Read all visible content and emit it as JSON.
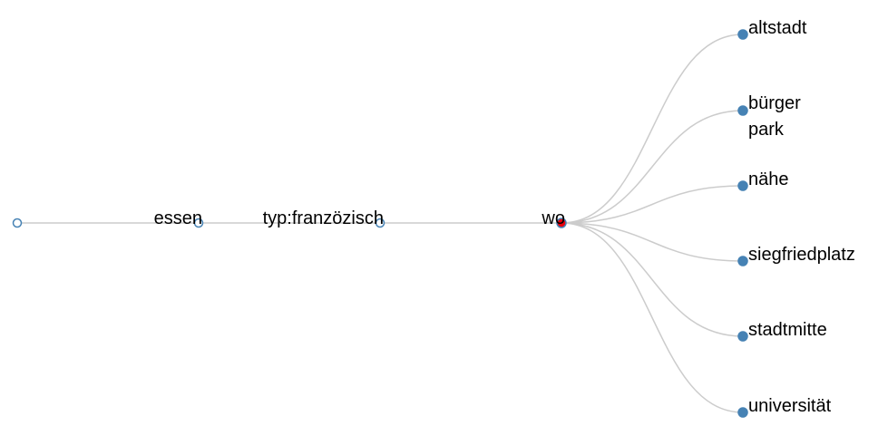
{
  "tree": {
    "colors": {
      "link": "#cccccc",
      "node_stroke": "#4682b4",
      "leaf_fill": "#4682b4",
      "open_fill": "#ffffff",
      "active_fill": "#e8000b",
      "active_stroke": "#e8000b",
      "text": "#000000"
    },
    "root": {
      "id": "root",
      "label": "",
      "state": "open",
      "children": [
        {
          "id": "essen",
          "label": "essen",
          "state": "open",
          "children": [
            {
              "id": "typ",
              "label": "typ:franzözisch",
              "state": "open",
              "children": [
                {
                  "id": "wo",
                  "label": "wo",
                  "state": "active",
                  "children": [
                    {
                      "id": "altstadt",
                      "label": "altstadt",
                      "state": "leaf"
                    },
                    {
                      "id": "buergerpark",
                      "label": "bürger park",
                      "label_lines": [
                        "bürger",
                        "park"
                      ],
                      "state": "leaf"
                    },
                    {
                      "id": "naehe",
                      "label": "nähe",
                      "state": "leaf"
                    },
                    {
                      "id": "siegfriedplatz",
                      "label": "siegfriedplatz",
                      "state": "leaf"
                    },
                    {
                      "id": "stadtmitte",
                      "label": "stadtmitte",
                      "state": "leaf"
                    },
                    {
                      "id": "universitaet",
                      "label": "universität",
                      "state": "leaf"
                    }
                  ]
                }
              ]
            }
          ]
        }
      ]
    }
  }
}
